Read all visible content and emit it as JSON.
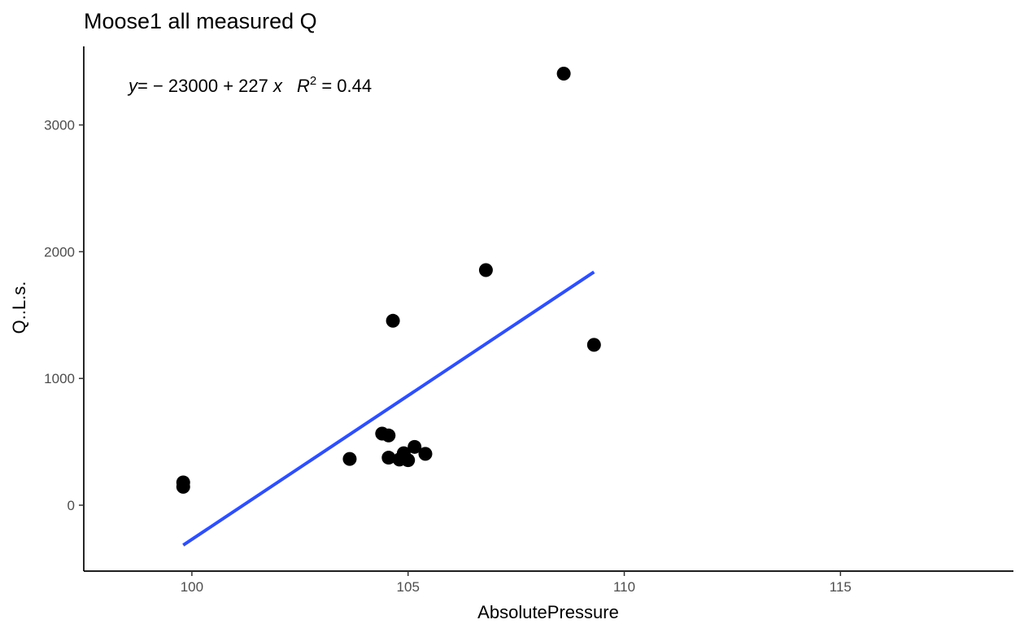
{
  "chart_data": {
    "type": "scatter",
    "title": "Moose1 all measured Q",
    "xlabel": "AbsolutePressure",
    "ylabel": "Q..L.s.",
    "xlim": [
      97.5,
      119
    ],
    "ylim": [
      -520,
      3620
    ],
    "x_ticks": [
      100,
      105,
      110,
      115
    ],
    "y_ticks": [
      0,
      1000,
      2000,
      3000
    ],
    "grid": false,
    "legend": "none",
    "point_color": "#000000",
    "line_color": "#3050f0",
    "points": [
      {
        "x": 99.8,
        "y": 180
      },
      {
        "x": 99.8,
        "y": 145
      },
      {
        "x": 103.65,
        "y": 365
      },
      {
        "x": 104.4,
        "y": 565
      },
      {
        "x": 104.55,
        "y": 550
      },
      {
        "x": 104.55,
        "y": 375
      },
      {
        "x": 104.65,
        "y": 1455
      },
      {
        "x": 104.8,
        "y": 360
      },
      {
        "x": 104.9,
        "y": 410
      },
      {
        "x": 105.0,
        "y": 355
      },
      {
        "x": 105.15,
        "y": 460
      },
      {
        "x": 105.4,
        "y": 405
      },
      {
        "x": 106.8,
        "y": 1855
      },
      {
        "x": 108.6,
        "y": 3405
      },
      {
        "x": 109.3,
        "y": 1265
      }
    ],
    "fit_line": {
      "x": [
        99.8,
        109.3
      ],
      "y": [
        -315,
        1840
      ]
    },
    "annotation": {
      "y_var": "y",
      "eq_rhs": "= − 23000 + 227 ",
      "x_var": "x",
      "r_var": "R",
      "r_sup": "2",
      "r_rhs": " = 0.44"
    }
  }
}
